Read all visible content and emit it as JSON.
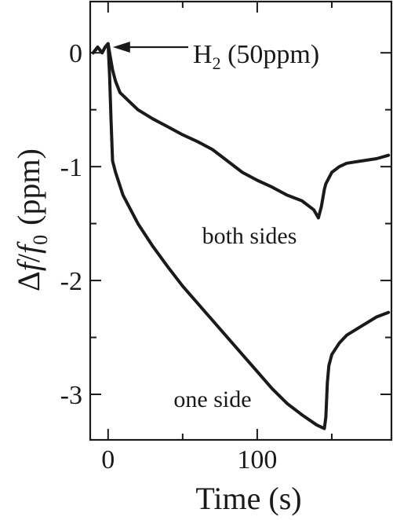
{
  "chart_data": {
    "type": "line",
    "xlabel": "Time (s)",
    "ylabel_parts": [
      "Δ",
      "f",
      "/",
      "f",
      "0",
      "(ppm)"
    ],
    "xlim": [
      -12,
      190
    ],
    "ylim": [
      -3.4,
      0.45
    ],
    "xticks": [
      {
        "value": 0,
        "label": "0"
      },
      {
        "value": 100,
        "label": "100"
      }
    ],
    "yticks": [
      {
        "value": 0,
        "label": "0"
      },
      {
        "value": -1,
        "label": "-1"
      },
      {
        "value": -2,
        "label": "-2"
      },
      {
        "value": -3,
        "label": "-3"
      }
    ],
    "annotations": {
      "gas": {
        "text": "H",
        "sub": "2",
        "rest": " (50ppm)",
        "arrow_to": [
          0,
          0.05
        ]
      },
      "both_sides": {
        "text": "both sides",
        "at": [
          118,
          -1.65
        ]
      },
      "one_side": {
        "text": "one side",
        "at": [
          107,
          -3.05
        ]
      }
    },
    "series": [
      {
        "label": "both sides",
        "points": [
          [
            -10,
            0.0
          ],
          [
            -7,
            0.05
          ],
          [
            -4,
            0.0
          ],
          [
            -2,
            0.05
          ],
          [
            0,
            0.08
          ],
          [
            1,
            0.0
          ],
          [
            3,
            -0.15
          ],
          [
            5,
            -0.25
          ],
          [
            8,
            -0.35
          ],
          [
            12,
            -0.4
          ],
          [
            20,
            -0.5
          ],
          [
            30,
            -0.58
          ],
          [
            40,
            -0.65
          ],
          [
            50,
            -0.72
          ],
          [
            60,
            -0.78
          ],
          [
            70,
            -0.85
          ],
          [
            80,
            -0.95
          ],
          [
            90,
            -1.05
          ],
          [
            100,
            -1.12
          ],
          [
            110,
            -1.18
          ],
          [
            120,
            -1.25
          ],
          [
            130,
            -1.3
          ],
          [
            138,
            -1.38
          ],
          [
            141,
            -1.45
          ],
          [
            143,
            -1.35
          ],
          [
            145,
            -1.2
          ],
          [
            146,
            -1.15
          ],
          [
            150,
            -1.05
          ],
          [
            155,
            -1.0
          ],
          [
            160,
            -0.97
          ],
          [
            170,
            -0.95
          ],
          [
            180,
            -0.93
          ],
          [
            188,
            -0.9
          ]
        ]
      },
      {
        "label": "one side",
        "points": [
          [
            -10,
            0.0
          ],
          [
            -7,
            0.05
          ],
          [
            -4,
            0.0
          ],
          [
            -2,
            0.05
          ],
          [
            0,
            0.08
          ],
          [
            1,
            -0.2
          ],
          [
            2,
            -0.6
          ],
          [
            3,
            -0.95
          ],
          [
            5,
            -1.05
          ],
          [
            10,
            -1.25
          ],
          [
            20,
            -1.5
          ],
          [
            30,
            -1.7
          ],
          [
            40,
            -1.88
          ],
          [
            50,
            -2.05
          ],
          [
            60,
            -2.2
          ],
          [
            70,
            -2.35
          ],
          [
            80,
            -2.5
          ],
          [
            90,
            -2.65
          ],
          [
            100,
            -2.8
          ],
          [
            110,
            -2.95
          ],
          [
            120,
            -3.08
          ],
          [
            130,
            -3.18
          ],
          [
            140,
            -3.27
          ],
          [
            145,
            -3.3
          ],
          [
            146,
            -3.2
          ],
          [
            147,
            -2.9
          ],
          [
            148,
            -2.75
          ],
          [
            150,
            -2.65
          ],
          [
            155,
            -2.55
          ],
          [
            160,
            -2.48
          ],
          [
            170,
            -2.4
          ],
          [
            180,
            -2.32
          ],
          [
            188,
            -2.28
          ]
        ]
      }
    ]
  }
}
